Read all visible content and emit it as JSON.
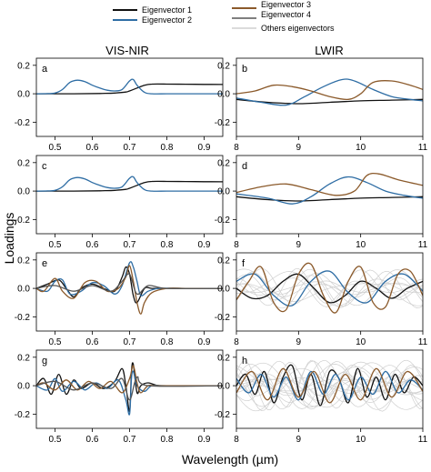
{
  "figure": {
    "ylabel": "Loadings",
    "xlabel": "Wavelength (µm)",
    "column_titles": [
      "VIS-NIR",
      "LWIR"
    ]
  },
  "legend": {
    "placement": "top-center",
    "items": [
      {
        "label": "Eigenvector 1",
        "color": "#111111"
      },
      {
        "label": "Eigenvector 2",
        "color": "#2e6da4"
      },
      {
        "label": "Eigenvector 3",
        "color": "#8b5a2b"
      },
      {
        "label": "Eigenvector 4",
        "color": "#555555"
      },
      {
        "label": "Others eigenvectors",
        "color": "#cfcfcf"
      }
    ]
  },
  "colors": {
    "ev1": "#111111",
    "ev2": "#2e6da4",
    "ev3": "#8b5a2b",
    "ev4": "#555555",
    "others": "#cfcfcf"
  },
  "axes": {
    "visnir": {
      "xlim": [
        0.45,
        0.95
      ],
      "xticks": [
        0.5,
        0.6,
        0.7,
        0.8,
        0.9
      ],
      "xticklabels": [
        "0.5",
        "0.6",
        "0.7",
        "0.8",
        "0.9"
      ]
    },
    "lwir": {
      "xlim": [
        8,
        11
      ],
      "xticks": [
        8,
        9,
        10,
        11
      ],
      "xticklabels": [
        "8",
        "9",
        "10",
        "11"
      ]
    },
    "ylim": [
      -0.3,
      0.25
    ],
    "yticks": [
      -0.2,
      0,
      0.2
    ],
    "yticklabels": [
      "-0.2",
      "0.0",
      "0.2"
    ]
  },
  "chart_data": [
    {
      "panel": "a",
      "type": "line",
      "region": "VIS-NIR",
      "series": [
        {
          "name": "Eigenvector 1",
          "color": "#111111",
          "x": [
            0.45,
            0.55,
            0.62,
            0.66,
            0.69,
            0.7,
            0.72,
            0.74,
            0.76,
            0.8,
            0.85,
            0.9,
            0.95
          ],
          "y": [
            0.0,
            0.0,
            0.002,
            0.005,
            0.012,
            0.02,
            0.04,
            0.06,
            0.068,
            0.068,
            0.067,
            0.066,
            0.065
          ]
        },
        {
          "name": "Eigenvector 2",
          "color": "#2e6da4",
          "x": [
            0.45,
            0.48,
            0.5,
            0.52,
            0.54,
            0.56,
            0.58,
            0.6,
            0.62,
            0.64,
            0.66,
            0.68,
            0.7,
            0.71,
            0.72,
            0.74,
            0.76,
            0.8,
            0.85,
            0.9,
            0.95
          ],
          "y": [
            0.0,
            0.001,
            0.005,
            0.03,
            0.08,
            0.095,
            0.085,
            0.06,
            0.04,
            0.025,
            0.02,
            0.03,
            0.09,
            0.1,
            0.06,
            0.01,
            0.0,
            0.0,
            0.0,
            0.0,
            0.0
          ]
        }
      ]
    },
    {
      "panel": "b",
      "type": "line",
      "region": "LWIR",
      "series": [
        {
          "name": "Eigenvector 1",
          "color": "#111111",
          "x": [
            8,
            8.5,
            9,
            9.5,
            10,
            10.5,
            11
          ],
          "y": [
            -0.04,
            -0.06,
            -0.07,
            -0.06,
            -0.05,
            -0.045,
            -0.04
          ]
        },
        {
          "name": "Eigenvector 2",
          "color": "#2e6da4",
          "x": [
            8,
            8.4,
            8.8,
            9.1,
            9.4,
            9.7,
            9.9,
            10.2,
            10.5,
            10.8,
            11
          ],
          "y": [
            -0.03,
            -0.06,
            -0.08,
            -0.02,
            0.05,
            0.1,
            0.09,
            0.03,
            -0.02,
            -0.04,
            -0.05
          ]
        },
        {
          "name": "Eigenvector 3",
          "color": "#8b5a2b",
          "x": [
            8,
            8.3,
            8.6,
            8.9,
            9.2,
            9.5,
            9.8,
            10.0,
            10.2,
            10.5,
            10.8,
            11
          ],
          "y": [
            0.0,
            0.02,
            0.06,
            0.05,
            0.02,
            -0.02,
            -0.04,
            0.0,
            0.08,
            0.09,
            0.06,
            0.03
          ]
        }
      ]
    },
    {
      "panel": "c",
      "type": "line",
      "region": "VIS-NIR",
      "series": [
        {
          "name": "Eigenvector 1",
          "color": "#111111",
          "x": [
            0.45,
            0.55,
            0.62,
            0.66,
            0.69,
            0.7,
            0.72,
            0.74,
            0.76,
            0.8,
            0.85,
            0.9,
            0.95
          ],
          "y": [
            0.0,
            0.0,
            0.002,
            0.005,
            0.012,
            0.02,
            0.04,
            0.06,
            0.068,
            0.068,
            0.067,
            0.066,
            0.065
          ]
        },
        {
          "name": "Eigenvector 2",
          "color": "#2e6da4",
          "x": [
            0.45,
            0.48,
            0.5,
            0.52,
            0.54,
            0.56,
            0.58,
            0.6,
            0.62,
            0.64,
            0.66,
            0.68,
            0.7,
            0.71,
            0.72,
            0.74,
            0.76,
            0.8,
            0.85,
            0.9,
            0.95
          ],
          "y": [
            0.0,
            0.001,
            0.005,
            0.03,
            0.08,
            0.095,
            0.085,
            0.06,
            0.04,
            0.025,
            0.02,
            0.03,
            0.09,
            0.1,
            0.06,
            0.01,
            0.0,
            0.0,
            0.0,
            0.0,
            0.0
          ]
        }
      ]
    },
    {
      "panel": "d",
      "type": "line",
      "region": "LWIR",
      "series": [
        {
          "name": "Eigenvector 1",
          "color": "#111111",
          "x": [
            8,
            8.5,
            9,
            9.5,
            10,
            10.5,
            11
          ],
          "y": [
            -0.04,
            -0.06,
            -0.07,
            -0.06,
            -0.05,
            -0.045,
            -0.04
          ]
        },
        {
          "name": "Eigenvector 2",
          "color": "#2e6da4",
          "x": [
            8,
            8.5,
            8.9,
            9.2,
            9.5,
            9.8,
            10.1,
            10.4,
            10.7,
            11
          ],
          "y": [
            -0.02,
            -0.05,
            -0.09,
            -0.04,
            0.05,
            0.1,
            0.06,
            0.0,
            -0.03,
            -0.05
          ]
        },
        {
          "name": "Eigenvector 3",
          "color": "#8b5a2b",
          "x": [
            8,
            8.4,
            8.8,
            9.2,
            9.6,
            9.9,
            10.1,
            10.3,
            10.6,
            11
          ],
          "y": [
            -0.01,
            0.03,
            0.05,
            0.01,
            -0.03,
            0.0,
            0.11,
            0.12,
            0.08,
            0.04
          ]
        }
      ]
    },
    {
      "panel": "e",
      "type": "line",
      "region": "VIS-NIR",
      "series": [
        {
          "name": "Eigenvector 1",
          "color": "#111111",
          "x": [
            0.45,
            0.48,
            0.51,
            0.53,
            0.55,
            0.57,
            0.6,
            0.63,
            0.66,
            0.68,
            0.69,
            0.7,
            0.71,
            0.72,
            0.74,
            0.76,
            0.8,
            0.85,
            0.9,
            0.95
          ],
          "y": [
            0.0,
            0.03,
            0.06,
            0.0,
            -0.06,
            0.0,
            0.03,
            0.0,
            -0.02,
            0.08,
            0.15,
            0.1,
            -0.05,
            -0.1,
            0.0,
            0.0,
            0.0,
            0.0,
            0.0,
            0.0
          ]
        },
        {
          "name": "Eigenvector 2",
          "color": "#2e6da4",
          "x": [
            0.45,
            0.48,
            0.5,
            0.52,
            0.54,
            0.57,
            0.6,
            0.63,
            0.66,
            0.68,
            0.7,
            0.71,
            0.72,
            0.73,
            0.75,
            0.78,
            0.85,
            0.9,
            0.95
          ],
          "y": [
            0.0,
            -0.02,
            0.05,
            0.06,
            -0.04,
            -0.02,
            0.04,
            0.02,
            -0.04,
            0.02,
            0.18,
            0.15,
            0.05,
            -0.05,
            -0.02,
            0.0,
            0.0,
            0.0,
            0.0
          ]
        },
        {
          "name": "Eigenvector 3",
          "color": "#8b5a2b",
          "x": [
            0.45,
            0.47,
            0.5,
            0.52,
            0.55,
            0.58,
            0.61,
            0.64,
            0.67,
            0.69,
            0.7,
            0.71,
            0.72,
            0.73,
            0.74,
            0.76,
            0.8,
            0.85,
            0.9,
            0.95
          ],
          "y": [
            0.0,
            -0.02,
            0.07,
            -0.02,
            -0.07,
            0.04,
            0.05,
            -0.02,
            0.0,
            0.08,
            0.16,
            0.05,
            -0.1,
            -0.18,
            -0.1,
            -0.03,
            0.0,
            0.0,
            0.0,
            0.0
          ]
        },
        {
          "name": "Eigenvector 4",
          "color": "#555555",
          "x": [
            0.45,
            0.5,
            0.55,
            0.6,
            0.65,
            0.68,
            0.7,
            0.72,
            0.75,
            0.8,
            0.95
          ],
          "y": [
            0.0,
            0.02,
            -0.02,
            0.02,
            -0.02,
            0.05,
            0.1,
            -0.04,
            0.02,
            0.0,
            0.0
          ]
        }
      ]
    },
    {
      "panel": "f",
      "type": "line",
      "region": "LWIR",
      "series": [
        {
          "name": "Eigenvector 1",
          "color": "#111111",
          "x": [
            8,
            8.25,
            8.5,
            8.75,
            9,
            9.25,
            9.5,
            9.75,
            10,
            10.25,
            10.5,
            10.75,
            11
          ],
          "y": [
            0.0,
            -0.07,
            -0.05,
            0.05,
            0.1,
            0.0,
            -0.1,
            -0.05,
            0.05,
            0.0,
            -0.07,
            0.0,
            0.05
          ]
        },
        {
          "name": "Eigenvector 2",
          "color": "#2e6da4",
          "x": [
            8,
            8.3,
            8.6,
            8.9,
            9.2,
            9.5,
            9.8,
            10.1,
            10.4,
            10.7,
            11
          ],
          "y": [
            0.05,
            0.1,
            -0.05,
            -0.12,
            0.05,
            0.12,
            -0.03,
            -0.1,
            0.05,
            0.1,
            -0.02
          ]
        },
        {
          "name": "Eigenvector 3",
          "color": "#8b5a2b",
          "x": [
            8,
            8.2,
            8.4,
            8.6,
            8.8,
            9.0,
            9.2,
            9.4,
            9.6,
            9.8,
            10.0,
            10.2,
            10.4,
            10.6,
            10.8,
            11
          ],
          "y": [
            -0.08,
            0.05,
            0.15,
            -0.1,
            -0.15,
            0.1,
            0.17,
            -0.05,
            -0.17,
            0.05,
            0.15,
            -0.1,
            -0.13,
            0.1,
            0.12,
            -0.05
          ]
        }
      ]
    },
    {
      "panel": "g",
      "type": "line",
      "region": "VIS-NIR",
      "series": [
        {
          "name": "Eigenvector 1",
          "color": "#111111",
          "x": [
            0.45,
            0.47,
            0.49,
            0.51,
            0.53,
            0.55,
            0.57,
            0.6,
            0.63,
            0.66,
            0.68,
            0.69,
            0.7,
            0.705,
            0.71,
            0.72,
            0.73,
            0.75,
            0.78,
            0.85,
            0.95
          ],
          "y": [
            0.0,
            0.05,
            -0.06,
            0.08,
            -0.06,
            0.04,
            -0.02,
            0.02,
            -0.02,
            0.03,
            0.12,
            0.0,
            -0.18,
            0.1,
            0.15,
            -0.05,
            0.0,
            0.02,
            0.0,
            0.0,
            0.0
          ]
        },
        {
          "name": "Eigenvector 2",
          "color": "#2e6da4",
          "x": [
            0.45,
            0.48,
            0.5,
            0.52,
            0.55,
            0.58,
            0.61,
            0.64,
            0.67,
            0.69,
            0.7,
            0.705,
            0.71,
            0.72,
            0.74,
            0.76,
            0.8,
            0.95
          ],
          "y": [
            0.0,
            -0.03,
            0.05,
            -0.04,
            0.03,
            -0.03,
            0.02,
            -0.02,
            0.04,
            -0.1,
            -0.2,
            0.05,
            0.1,
            0.0,
            -0.04,
            0.0,
            0.0,
            0.0
          ]
        },
        {
          "name": "Eigenvector 3",
          "color": "#8b5a2b",
          "x": [
            0.45,
            0.47,
            0.5,
            0.53,
            0.56,
            0.59,
            0.62,
            0.65,
            0.68,
            0.7,
            0.71,
            0.72,
            0.73,
            0.75,
            0.78,
            0.95
          ],
          "y": [
            0.0,
            0.02,
            -0.03,
            0.04,
            -0.03,
            0.03,
            -0.02,
            0.03,
            -0.05,
            0.05,
            0.14,
            0.02,
            -0.05,
            0.0,
            0.0,
            0.0
          ]
        },
        {
          "name": "Eigenvector 4",
          "color": "#555555",
          "x": [
            0.45,
            0.5,
            0.55,
            0.6,
            0.65,
            0.68,
            0.7,
            0.72,
            0.75,
            0.95
          ],
          "y": [
            0.0,
            0.03,
            -0.03,
            0.02,
            -0.02,
            0.05,
            -0.1,
            0.06,
            0.0,
            0.0
          ]
        }
      ]
    },
    {
      "panel": "h",
      "type": "line",
      "region": "LWIR",
      "series": [
        {
          "name": "Eigenvector 1",
          "color": "#111111",
          "x": [
            8,
            8.15,
            8.3,
            8.45,
            8.6,
            8.75,
            8.9,
            9.05,
            9.2,
            9.35,
            9.5,
            9.65,
            9.8,
            9.95,
            10.1,
            10.25,
            10.4,
            10.55,
            10.7,
            10.85,
            11
          ],
          "y": [
            0.0,
            0.08,
            -0.06,
            0.1,
            -0.12,
            0.06,
            0.14,
            -0.1,
            0.08,
            -0.14,
            0.1,
            0.05,
            -0.12,
            0.12,
            -0.08,
            0.06,
            -0.1,
            0.08,
            -0.05,
            0.06,
            0.0
          ]
        },
        {
          "name": "Eigenvector 2",
          "color": "#2e6da4",
          "x": [
            8,
            8.2,
            8.4,
            8.6,
            8.8,
            9.0,
            9.2,
            9.4,
            9.6,
            9.8,
            10.0,
            10.2,
            10.4,
            10.6,
            10.8,
            11
          ],
          "y": [
            0.05,
            -0.05,
            0.08,
            -0.08,
            0.06,
            -0.1,
            0.1,
            -0.06,
            0.08,
            -0.1,
            0.06,
            -0.06,
            0.1,
            -0.05,
            0.04,
            -0.03
          ]
        },
        {
          "name": "Eigenvector 3",
          "color": "#8b5a2b",
          "x": [
            8,
            8.25,
            8.5,
            8.75,
            9,
            9.25,
            9.5,
            9.75,
            10,
            10.25,
            10.5,
            10.75,
            11
          ],
          "y": [
            -0.05,
            0.1,
            -0.1,
            0.12,
            -0.08,
            0.1,
            -0.12,
            0.08,
            -0.1,
            0.12,
            -0.08,
            0.1,
            -0.04
          ]
        }
      ]
    }
  ]
}
